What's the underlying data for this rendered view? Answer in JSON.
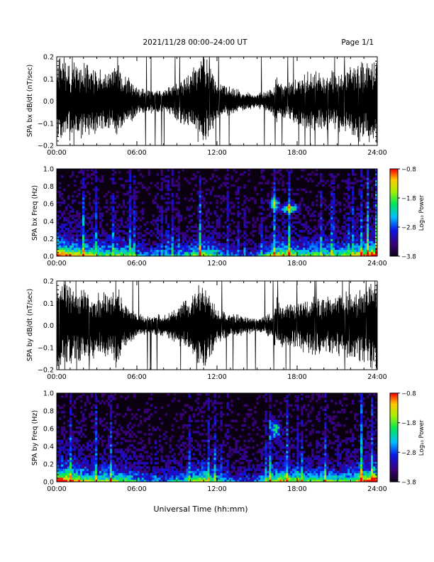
{
  "header": {
    "title": "2021/11/28  00:00–24:00 UT",
    "page": "Page 1/1"
  },
  "xaxis": {
    "label": "Universal Time (hh:mm)",
    "ticks": [
      "00:00",
      "06:00",
      "12:00",
      "18:00",
      "24:00"
    ],
    "range_hours": [
      0,
      24
    ]
  },
  "colors": {
    "background": "#ffffff",
    "trace": "#000000",
    "spectrogram_floor": "#0a0010"
  },
  "chart_data": [
    {
      "type": "line",
      "ylabel": "SPA bx dB/dt (nT/sec)",
      "ylim": [
        -0.2,
        0.2
      ],
      "yticks": [
        "0.2",
        "0.1",
        "0.0",
        "−0.1",
        "−0.2"
      ],
      "x_unit": "hours UT",
      "series": [
        {
          "x": [
            0,
            0.5,
            1,
            1.5,
            2,
            3,
            4,
            4.5,
            5,
            6,
            7,
            8,
            9,
            10,
            11,
            11.5,
            12,
            13,
            14,
            15,
            16,
            16.5,
            17,
            18,
            19,
            20,
            21,
            22,
            23,
            23.5,
            24
          ],
          "values": [
            0.2,
            0.2,
            0.16,
            0.15,
            0.16,
            0.13,
            0.12,
            0.17,
            0.12,
            0.06,
            0.05,
            0.05,
            0.08,
            0.13,
            0.2,
            0.14,
            0.08,
            0.06,
            0.04,
            0.03,
            0.05,
            0.1,
            0.07,
            0.1,
            0.13,
            0.12,
            0.13,
            0.14,
            0.18,
            0.2,
            0.2
          ]
        }
      ]
    },
    {
      "type": "heatmap",
      "ylabel": "SPA bx Freq (Hz)",
      "ylim": [
        0.0,
        1.0
      ],
      "yticks": [
        "1.0",
        "0.8",
        "0.6",
        "0.4",
        "0.2",
        "0.0"
      ],
      "colorbar": {
        "label": "Log₁₀ Power",
        "ticks": [
          "−0.8",
          "−1.8",
          "−2.8",
          "−3.8"
        ],
        "range": [
          -3.8,
          -0.8
        ]
      },
      "x_hours": [
        0,
        1,
        2,
        3,
        4,
        5,
        6,
        7,
        8,
        9,
        10,
        11,
        12,
        13,
        14,
        15,
        16,
        17,
        18,
        19,
        20,
        21,
        22,
        23,
        24
      ],
      "activity": [
        1.0,
        0.8,
        0.7,
        0.6,
        0.6,
        0.65,
        0.45,
        0.35,
        0.35,
        0.4,
        0.55,
        0.7,
        0.5,
        0.3,
        0.3,
        0.3,
        0.6,
        0.75,
        0.6,
        0.55,
        0.6,
        0.55,
        0.6,
        0.8,
        1.0
      ],
      "features": [
        {
          "hour": 16.3,
          "freq": 0.6,
          "spread": 0.08
        },
        {
          "hour": 17.2,
          "freq": 0.55,
          "spread": 0.05
        },
        {
          "hour": 17.7,
          "freq": 0.55,
          "spread": 0.05
        }
      ]
    },
    {
      "type": "line",
      "ylabel": "SPA by dB/dt (nT/sec)",
      "ylim": [
        -0.2,
        0.2
      ],
      "yticks": [
        "0.2",
        "0.1",
        "0.0",
        "−0.1",
        "−0.2"
      ],
      "x_unit": "hours UT",
      "series": [
        {
          "x": [
            0,
            0.5,
            1,
            1.5,
            2,
            3,
            4,
            4.5,
            5,
            6,
            7,
            8,
            9,
            10,
            11,
            11.5,
            12,
            13,
            14,
            15,
            16,
            16.5,
            17,
            18,
            19,
            20,
            21,
            22,
            23,
            23.5,
            24
          ],
          "values": [
            0.2,
            0.2,
            0.17,
            0.15,
            0.16,
            0.14,
            0.13,
            0.18,
            0.1,
            0.05,
            0.04,
            0.05,
            0.08,
            0.12,
            0.2,
            0.14,
            0.07,
            0.05,
            0.04,
            0.03,
            0.05,
            0.12,
            0.09,
            0.1,
            0.12,
            0.12,
            0.13,
            0.14,
            0.17,
            0.2,
            0.2
          ]
        }
      ]
    },
    {
      "type": "heatmap",
      "ylabel": "SPA by Freq (Hz)",
      "ylim": [
        0.0,
        1.0
      ],
      "yticks": [
        "1.0",
        "0.8",
        "0.6",
        "0.4",
        "0.2",
        "0.0"
      ],
      "colorbar": {
        "label": "Log₁₀ Power",
        "ticks": [
          "−0.8",
          "−1.8",
          "−2.8",
          "−3.8"
        ],
        "range": [
          -3.8,
          -0.8
        ]
      },
      "x_hours": [
        0,
        1,
        2,
        3,
        4,
        5,
        6,
        7,
        8,
        9,
        10,
        11,
        12,
        13,
        14,
        15,
        16,
        17,
        18,
        19,
        20,
        21,
        22,
        23,
        24
      ],
      "activity": [
        1.0,
        0.85,
        0.7,
        0.6,
        0.65,
        0.6,
        0.45,
        0.35,
        0.35,
        0.4,
        0.55,
        0.7,
        0.5,
        0.3,
        0.3,
        0.3,
        0.65,
        0.75,
        0.6,
        0.55,
        0.6,
        0.55,
        0.6,
        0.8,
        1.0
      ],
      "features": [
        {
          "hour": 16.4,
          "freq": 0.6,
          "spread": 0.1
        }
      ]
    }
  ]
}
